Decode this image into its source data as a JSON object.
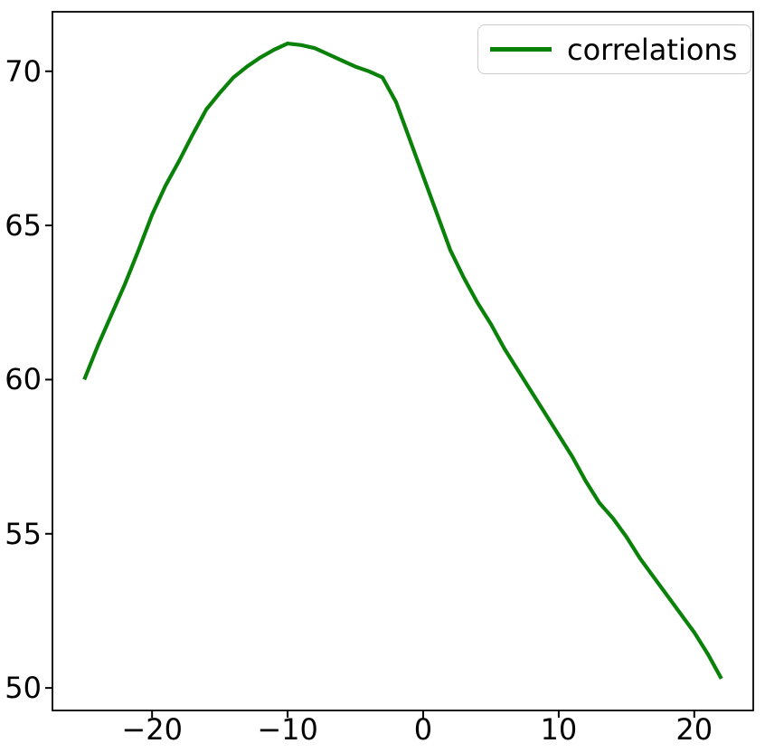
{
  "chart_data": {
    "type": "line",
    "title": "",
    "xlabel": "",
    "ylabel": "",
    "grid": false,
    "line_color": "#0a820a",
    "legend": {
      "label": "correlations",
      "position": "upper right"
    },
    "xlim": [
      -27.35,
      24.35
    ],
    "ylim": [
      49.27,
      71.93
    ],
    "x_ticks": {
      "values": [
        -20,
        -10,
        0,
        10,
        20
      ],
      "labels": [
        "−20",
        "−10",
        "0",
        "10",
        "20"
      ]
    },
    "y_ticks": {
      "values": [
        50,
        55,
        60,
        65,
        70
      ],
      "labels": [
        "50",
        "55",
        "60",
        "65",
        "70"
      ]
    },
    "series": [
      {
        "name": "correlations",
        "x": [
          -25,
          -24,
          -23,
          -22,
          -21,
          -20,
          -19,
          -18,
          -17,
          -16,
          -15,
          -14,
          -13,
          -12,
          -11,
          -10,
          -9,
          -8,
          -7,
          -6,
          -5,
          -4,
          -3,
          -2,
          -1,
          0,
          1,
          2,
          3,
          4,
          5,
          6,
          7,
          8,
          9,
          10,
          11,
          12,
          13,
          14,
          15,
          16,
          17,
          18,
          19,
          20,
          21,
          22
        ],
        "y": [
          60.0,
          61.1,
          62.1,
          63.1,
          64.2,
          65.35,
          66.3,
          67.1,
          67.95,
          68.76,
          69.3,
          69.8,
          70.15,
          70.45,
          70.7,
          70.9,
          70.85,
          70.75,
          70.55,
          70.35,
          70.15,
          70.0,
          69.8,
          69.0,
          67.8,
          66.6,
          65.4,
          64.2,
          63.3,
          62.5,
          61.8,
          61.0,
          60.3,
          59.6,
          58.9,
          58.2,
          57.5,
          56.7,
          56.0,
          55.5,
          54.9,
          54.2,
          53.6,
          53.0,
          52.4,
          51.8,
          51.1,
          50.3
        ]
      }
    ]
  }
}
